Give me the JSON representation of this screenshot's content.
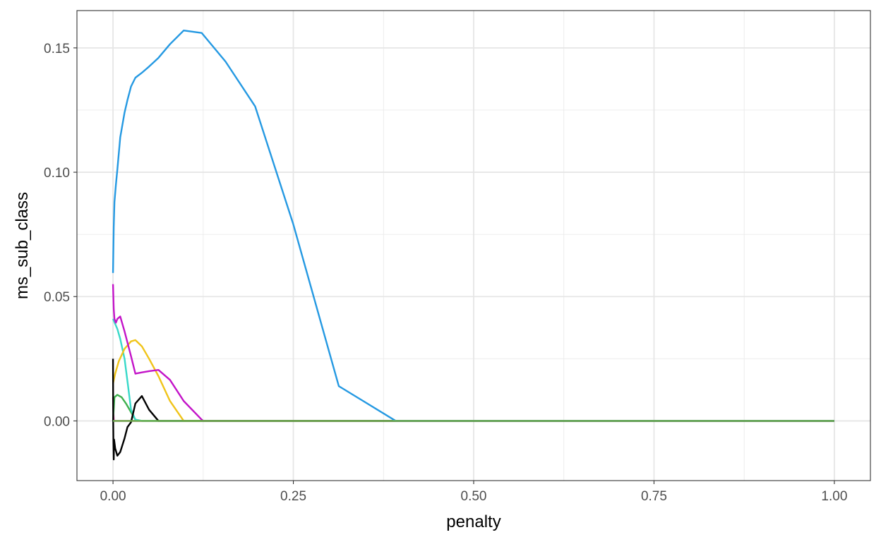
{
  "chart_data": {
    "type": "line",
    "title": "",
    "xlabel": "penalty",
    "ylabel": "ms_sub_class",
    "xlim": [
      -0.05,
      1.05
    ],
    "ylim": [
      -0.024,
      0.165
    ],
    "x_ticks": [
      0.0,
      0.25,
      0.5,
      0.75,
      1.0
    ],
    "x_tick_labels": [
      "0.00",
      "0.25",
      "0.50",
      "0.75",
      "1.00"
    ],
    "y_ticks": [
      0.0,
      0.05,
      0.1,
      0.15
    ],
    "y_tick_labels": [
      "0.00",
      "0.05",
      "0.10",
      "0.15"
    ],
    "x_minor": [
      0.125,
      0.375,
      0.625,
      0.875
    ],
    "y_minor": [
      -0.025,
      0.025,
      0.075,
      0.125
    ],
    "grid": true,
    "legend": "none",
    "series": [
      {
        "color": "#f8766d",
        "points": [
          [
            0.0,
            0.0
          ],
          [
            0.0005,
            0.0
          ],
          [
            1.0,
            0.0
          ]
        ]
      },
      {
        "color": "#e7e1ef",
        "points": [
          [
            0.0,
            0.0
          ],
          [
            1.0,
            0.0
          ]
        ]
      },
      {
        "color": "#d01c8b",
        "points": [
          [
            0.0,
            0.0095
          ],
          [
            0.0005,
            0.004
          ],
          [
            0.001,
            0.0
          ],
          [
            0.002,
            0.0
          ],
          [
            1.0,
            0.0
          ]
        ]
      },
      {
        "color": "#3fb14f",
        "points": [
          [
            0.0,
            0.0
          ],
          [
            0.002,
            0.0095
          ],
          [
            0.006,
            0.0105
          ],
          [
            0.012,
            0.0095
          ],
          [
            0.018,
            0.007
          ],
          [
            0.025,
            0.0035
          ],
          [
            0.031,
            0.0005
          ],
          [
            0.04,
            0.0
          ],
          [
            1.0,
            0.0
          ]
        ]
      },
      {
        "color": "#38d9c9",
        "points": [
          [
            0.0,
            0.041
          ],
          [
            0.003,
            0.039
          ],
          [
            0.006,
            0.037
          ],
          [
            0.01,
            0.033
          ],
          [
            0.016,
            0.025
          ],
          [
            0.02,
            0.016
          ],
          [
            0.025,
            0.0045
          ],
          [
            0.031,
            0.0005
          ],
          [
            0.04,
            0.0
          ],
          [
            1.0,
            0.0
          ]
        ]
      },
      {
        "color": "#f0c419",
        "points": [
          [
            0.0,
            0.015
          ],
          [
            0.003,
            0.019
          ],
          [
            0.008,
            0.024
          ],
          [
            0.016,
            0.029
          ],
          [
            0.025,
            0.032
          ],
          [
            0.031,
            0.0325
          ],
          [
            0.04,
            0.03
          ],
          [
            0.05,
            0.025
          ],
          [
            0.063,
            0.018
          ],
          [
            0.079,
            0.008
          ],
          [
            0.098,
            0.0
          ],
          [
            1.0,
            0.0
          ]
        ]
      },
      {
        "color": "#c314c8",
        "points": [
          [
            0.0,
            0.055
          ],
          [
            0.001,
            0.045
          ],
          [
            0.002,
            0.041
          ],
          [
            0.004,
            0.0395
          ],
          [
            0.006,
            0.041
          ],
          [
            0.01,
            0.042
          ],
          [
            0.016,
            0.036
          ],
          [
            0.025,
            0.026
          ],
          [
            0.031,
            0.019
          ],
          [
            0.04,
            0.0195
          ],
          [
            0.05,
            0.02
          ],
          [
            0.063,
            0.0205
          ],
          [
            0.079,
            0.0165
          ],
          [
            0.098,
            0.008
          ],
          [
            0.123,
            0.0005
          ],
          [
            0.125,
            0.0
          ],
          [
            1.0,
            0.0
          ]
        ]
      },
      {
        "color": "#000000",
        "points": [
          [
            0.0,
            0.025
          ],
          [
            0.0003,
            -0.001
          ],
          [
            0.0006,
            -0.009
          ],
          [
            0.001,
            -0.0155
          ],
          [
            0.0015,
            -0.0075
          ],
          [
            0.003,
            -0.011
          ],
          [
            0.006,
            -0.014
          ],
          [
            0.01,
            -0.0125
          ],
          [
            0.016,
            -0.007
          ],
          [
            0.02,
            -0.0025
          ],
          [
            0.025,
            -0.0005
          ],
          [
            0.031,
            0.007
          ],
          [
            0.04,
            0.01
          ],
          [
            0.05,
            0.0045
          ],
          [
            0.063,
            0.0
          ],
          [
            1.0,
            0.0
          ]
        ]
      },
      {
        "color": "#2599e2",
        "points": [
          [
            0.0,
            0.0595
          ],
          [
            0.001,
            0.078
          ],
          [
            0.002,
            0.088
          ],
          [
            0.004,
            0.095
          ],
          [
            0.006,
            0.101
          ],
          [
            0.01,
            0.114
          ],
          [
            0.016,
            0.124
          ],
          [
            0.02,
            0.129
          ],
          [
            0.025,
            0.1345
          ],
          [
            0.031,
            0.138
          ],
          [
            0.04,
            0.14
          ],
          [
            0.05,
            0.1425
          ],
          [
            0.063,
            0.146
          ],
          [
            0.079,
            0.1515
          ],
          [
            0.098,
            0.157
          ],
          [
            0.123,
            0.156
          ],
          [
            0.156,
            0.1445
          ],
          [
            0.197,
            0.1265
          ],
          [
            0.25,
            0.079
          ],
          [
            0.313,
            0.014
          ],
          [
            0.392,
            0.0
          ],
          [
            1.0,
            0.0
          ]
        ]
      },
      {
        "color": "#6ab04c",
        "points": [
          [
            0.0,
            0.0
          ],
          [
            1.0,
            0.0
          ]
        ]
      }
    ]
  }
}
